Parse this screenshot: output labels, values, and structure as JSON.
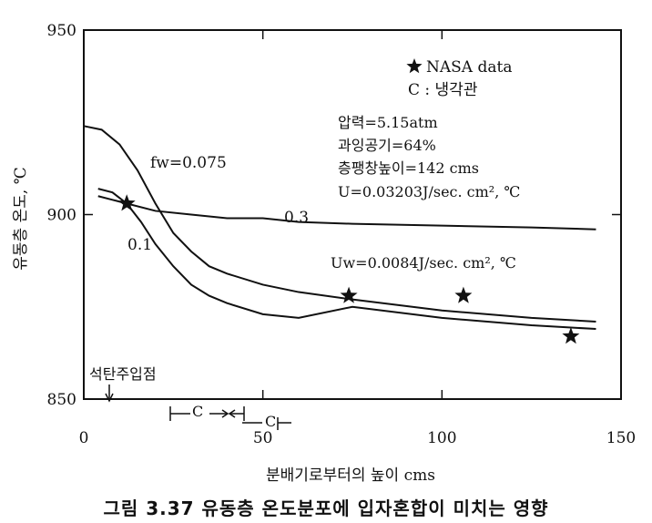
{
  "chart_data": {
    "type": "line",
    "title": "",
    "xlabel": "분배기로부터의 높이 cms",
    "ylabel": "유동층 온도, ℃",
    "xlim": [
      0,
      150
    ],
    "ylim": [
      850,
      950
    ],
    "xticks": [
      "0",
      "50",
      "100",
      "150"
    ],
    "yticks": [
      "850",
      "900",
      "950"
    ],
    "grid": false,
    "series": [
      {
        "name": "f_w=0.075",
        "x": [
          0,
          5,
          10,
          15,
          20,
          25,
          30,
          35,
          40,
          50,
          60,
          75,
          100,
          125,
          143
        ],
        "y": [
          924,
          923,
          919,
          912,
          903,
          895,
          890,
          886,
          884,
          881,
          879,
          877,
          874,
          872,
          871
        ]
      },
      {
        "name": "0.1",
        "x": [
          4,
          8,
          12,
          16,
          20,
          25,
          30,
          35,
          40,
          50,
          60,
          75,
          100,
          125,
          143
        ],
        "y": [
          907,
          906,
          903,
          898,
          892,
          886,
          881,
          878,
          876,
          873,
          872,
          875,
          872,
          870,
          869
        ]
      },
      {
        "name": "0.3",
        "x": [
          4,
          8,
          12,
          20,
          30,
          40,
          50,
          60,
          75,
          100,
          125,
          143
        ],
        "y": [
          905,
          904,
          903,
          901,
          900,
          899,
          899,
          898,
          897.5,
          897,
          896.5,
          896
        ]
      }
    ],
    "nasa_data": {
      "name": "NASA data",
      "x": [
        12,
        74,
        106,
        136
      ],
      "y": [
        903,
        878,
        878,
        867
      ]
    },
    "annotations": {
      "legend_star": "NASA data",
      "legend_c": "C : 냉각관",
      "pressure": "압력=5.15atm",
      "excess_air": "과잉공기=64%",
      "bed_height": "층팽창높이=142 cms",
      "u_value": "U=0.03203J/sec. cm², ℃",
      "uw_value": "Uw=0.0084J/sec. cm², ℃",
      "fw_label": "fw=0.075",
      "label_01": "0.1",
      "label_03": "0.3",
      "coal_feed": "석탄주입점",
      "cooler_c": "C"
    },
    "legend": "top-right"
  },
  "caption": "그림 3.37  유동층 온도분포에 입자혼합이 미치는 영향"
}
